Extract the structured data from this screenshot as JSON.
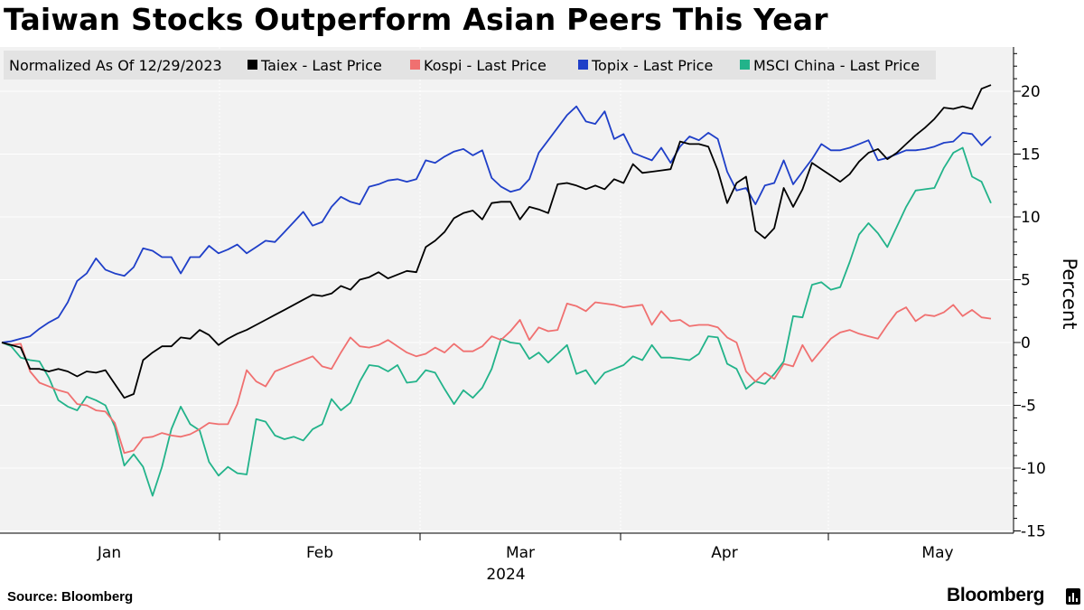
{
  "title": "Taiwan Stocks Outperform Asian Peers This Year",
  "source": "Source: Bloomberg",
  "brand": "Bloomberg",
  "chart_data": {
    "type": "line",
    "title": "Taiwan Stocks Outperform Asian Peers This Year",
    "subtitle": "Normalized As Of 12/29/2023",
    "ylabel": "Percent",
    "xlabel": "2024",
    "ylim": [
      -15.5,
      23.5
    ],
    "yticks": [
      -15,
      -10,
      -5,
      0,
      5,
      10,
      15,
      20
    ],
    "ytick_labels": [
      "-15",
      "-10",
      "-5",
      "0",
      "5",
      "10",
      "15",
      "20"
    ],
    "x_month_labels": [
      "Jan",
      "Feb",
      "Mar",
      "Apr",
      "May"
    ],
    "x_year_label": "2024",
    "legend_position": "top-left",
    "series": [
      {
        "name": "Taiex - Last Price",
        "color": "#000000",
        "values": [
          0,
          -0.2,
          -0.4,
          -2.1,
          -2.1,
          -2.3,
          -2.1,
          -2.3,
          -2.7,
          -2.3,
          -2.4,
          -2.2,
          -3.3,
          -4.4,
          -4.1,
          -1.4,
          -0.8,
          -0.3,
          -0.3,
          0.4,
          0.3,
          1.0,
          0.6,
          -0.2,
          0.3,
          0.7,
          1.0,
          1.4,
          1.8,
          2.2,
          2.6,
          3.0,
          3.4,
          3.8,
          3.7,
          3.9,
          4.5,
          4.2,
          5.0,
          5.2,
          5.6,
          5.1,
          5.4,
          5.7,
          5.6,
          7.6,
          8.1,
          8.8,
          9.9,
          10.3,
          10.5,
          9.8,
          11.1,
          11.2,
          11.2,
          9.8,
          10.8,
          10.6,
          10.3,
          12.6,
          12.7,
          12.5,
          12.2,
          12.5,
          12.2,
          13.0,
          12.7,
          14.2,
          13.5,
          13.6,
          13.7,
          13.8,
          16.0,
          15.8,
          15.8,
          15.6,
          13.7,
          11.1,
          12.7,
          13.2,
          8.9,
          8.3,
          9.1,
          12.3,
          10.8,
          12.2,
          14.3,
          13.8,
          13.3,
          12.8,
          13.4,
          14.4,
          15.1,
          15.4,
          14.6,
          15.1,
          15.8,
          16.5,
          17.1,
          17.8,
          18.7,
          18.6,
          18.8,
          18.6,
          20.2,
          20.5
        ]
      },
      {
        "name": "Kospi - Last Price",
        "color": "#f07070",
        "values": [
          0,
          -0.2,
          -0.1,
          -2.3,
          -3.2,
          -3.5,
          -3.8,
          -4.0,
          -4.9,
          -5.0,
          -5.4,
          -5.5,
          -6.4,
          -8.8,
          -8.6,
          -7.6,
          -7.5,
          -7.2,
          -7.4,
          -7.5,
          -7.3,
          -6.9,
          -6.4,
          -6.5,
          -6.5,
          -4.9,
          -2.2,
          -3.1,
          -3.5,
          -2.3,
          -2.0,
          -1.7,
          -1.4,
          -1.1,
          -1.9,
          -2.1,
          -0.8,
          0.4,
          -0.3,
          -0.4,
          -0.2,
          0.2,
          -0.3,
          -0.8,
          -1.1,
          -0.9,
          -0.4,
          -0.8,
          -0.1,
          -0.7,
          -0.7,
          -0.3,
          0.5,
          0.2,
          0.9,
          1.8,
          0.2,
          1.2,
          0.9,
          1.0,
          3.1,
          2.9,
          2.5,
          3.2,
          3.1,
          3.0,
          2.8,
          2.9,
          3.0,
          1.4,
          2.5,
          1.7,
          1.8,
          1.3,
          1.4,
          1.4,
          1.2,
          0.4,
          0.0,
          -2.3,
          -3.1,
          -2.4,
          -2.9,
          -1.7,
          -1.9,
          -0.2,
          -1.5,
          -0.6,
          0.3,
          0.8,
          1.0,
          0.7,
          0.5,
          0.3,
          1.4,
          2.4,
          2.8,
          1.7,
          2.2,
          2.1,
          2.4,
          3.0,
          2.1,
          2.6,
          2.0,
          1.9
        ]
      },
      {
        "name": "Topix - Last Price",
        "color": "#1f3fc8",
        "values": [
          0,
          0.1,
          0.3,
          0.5,
          1.1,
          1.6,
          2.0,
          3.2,
          4.9,
          5.5,
          6.7,
          5.8,
          5.5,
          5.3,
          6.0,
          7.5,
          7.3,
          6.8,
          6.8,
          5.5,
          6.8,
          6.8,
          7.7,
          7.1,
          7.4,
          7.8,
          7.1,
          7.6,
          8.1,
          8.0,
          8.8,
          9.6,
          10.4,
          9.3,
          9.6,
          10.8,
          11.6,
          11.2,
          11.0,
          12.4,
          12.6,
          12.9,
          13.0,
          12.8,
          13.0,
          14.5,
          14.3,
          14.8,
          15.2,
          15.4,
          14.9,
          15.3,
          13.1,
          12.4,
          12.0,
          12.2,
          13.0,
          15.1,
          16.1,
          17.1,
          18.1,
          18.8,
          17.6,
          17.4,
          18.4,
          16.2,
          16.6,
          15.1,
          14.8,
          14.5,
          15.5,
          14.3,
          15.6,
          16.4,
          16.1,
          16.7,
          16.2,
          13.6,
          12.1,
          12.3,
          11.0,
          12.5,
          12.7,
          14.5,
          12.6,
          13.6,
          14.6,
          15.8,
          15.3,
          15.3,
          15.5,
          15.8,
          16.1,
          14.5,
          14.7,
          15.0,
          15.3,
          15.3,
          15.4,
          15.6,
          15.9,
          16.0,
          16.7,
          16.6,
          15.7,
          16.4
        ]
      },
      {
        "name": "MSCI China - Last Price",
        "color": "#22b38a",
        "values": [
          0,
          -0.3,
          -1.2,
          -1.4,
          -1.5,
          -2.8,
          -4.6,
          -5.1,
          -5.4,
          -4.3,
          -4.6,
          -5.0,
          -6.7,
          -9.8,
          -8.9,
          -9.9,
          -12.2,
          -9.9,
          -6.9,
          -5.1,
          -6.5,
          -7.0,
          -9.5,
          -10.6,
          -9.9,
          -10.4,
          -10.5,
          -6.1,
          -6.3,
          -7.4,
          -7.7,
          -7.5,
          -7.8,
          -6.9,
          -6.5,
          -4.5,
          -5.4,
          -4.8,
          -3.1,
          -1.8,
          -1.9,
          -2.3,
          -1.8,
          -3.2,
          -3.1,
          -2.2,
          -2.4,
          -3.7,
          -4.9,
          -3.8,
          -4.4,
          -3.6,
          -2.1,
          0.3,
          0.0,
          -0.1,
          -1.3,
          -0.8,
          -1.6,
          -0.9,
          -0.2,
          -2.5,
          -2.2,
          -3.3,
          -2.4,
          -2.1,
          -1.8,
          -1.1,
          -1.4,
          -0.2,
          -1.2,
          -1.2,
          -1.3,
          -1.4,
          -0.9,
          0.5,
          0.4,
          -1.7,
          -2.1,
          -3.7,
          -3.1,
          -3.3,
          -2.5,
          -1.5,
          2.1,
          2.0,
          4.6,
          4.8,
          4.2,
          4.4,
          6.4,
          8.6,
          9.5,
          8.7,
          7.6,
          9.2,
          10.8,
          12.1,
          12.2,
          12.3,
          13.9,
          15.1,
          15.5,
          13.2,
          12.8,
          11.1
        ]
      }
    ]
  }
}
